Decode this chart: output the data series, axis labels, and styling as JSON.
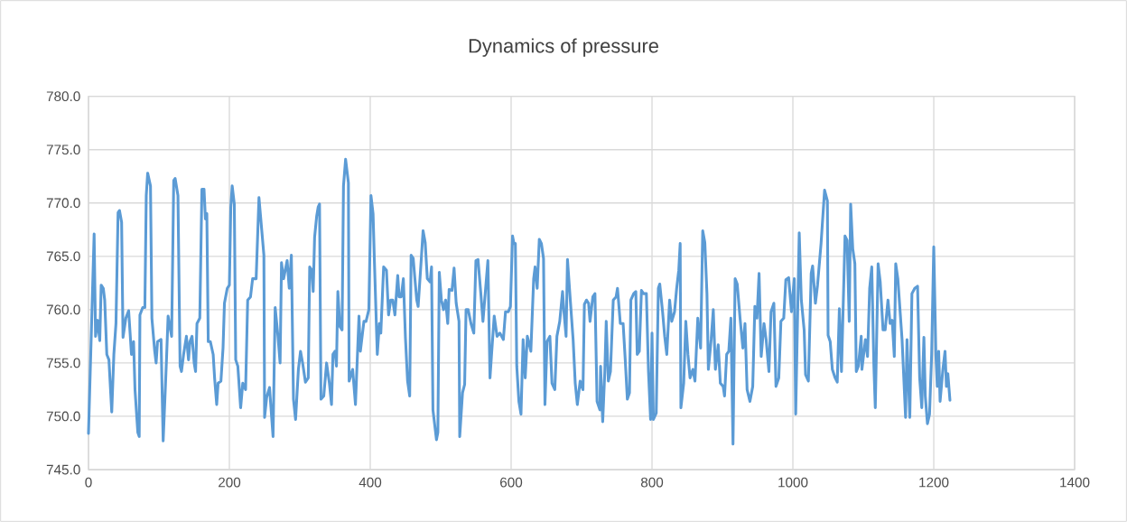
{
  "chart_data": {
    "type": "line",
    "title": "Dynamics of pressure",
    "xlim": [
      0,
      1400
    ],
    "xticks": [
      0,
      200,
      400,
      600,
      800,
      1000,
      1200,
      1400
    ],
    "ylim": [
      745,
      780
    ],
    "yticks": [
      {
        "value": 745,
        "label": "745.0"
      },
      {
        "value": 750,
        "label": "750.0"
      },
      {
        "value": 755,
        "label": "755.0"
      },
      {
        "value": 760,
        "label": "760.0"
      },
      {
        "value": 765,
        "label": "765.0"
      },
      {
        "value": 770,
        "label": "770.0"
      },
      {
        "value": 775,
        "label": "775.0"
      },
      {
        "value": 780,
        "label": "780.0"
      }
    ],
    "grid": true,
    "marker": "none",
    "line_style": "solid",
    "series": [
      {
        "color": "#5b9bd5",
        "x": [
          0,
          8,
          10,
          13,
          16,
          18,
          21,
          23,
          26,
          29,
          33,
          36,
          39,
          42,
          44,
          47,
          49,
          53,
          57,
          61,
          64,
          66,
          70,
          72,
          73,
          77,
          80,
          82,
          84,
          88,
          90,
          94,
          96,
          98,
          103,
          106,
          109,
          111,
          113,
          118,
          121,
          123,
          127,
          130,
          132,
          135,
          139,
          142,
          144,
          147,
          150,
          152,
          154,
          158,
          161,
          164,
          166,
          168,
          170,
          173,
          177,
          179,
          182,
          184,
          188,
          191,
          193,
          197,
          200,
          202,
          204,
          207,
          209,
          212,
          216,
          219,
          223,
          226,
          230,
          233,
          238,
          242,
          249,
          250,
          253,
          257,
          262,
          265,
          269,
          272,
          274,
          277,
          282,
          285,
          288,
          291,
          294,
          298,
          301,
          304,
          308,
          312,
          314,
          317,
          319,
          321,
          324,
          326,
          328,
          330,
          334,
          338,
          342,
          345,
          347,
          350,
          352,
          354,
          357,
          360,
          362,
          365,
          369,
          370,
          375,
          379,
          384,
          386,
          391,
          394,
          398,
          401,
          404,
          406,
          410,
          413,
          415,
          419,
          423,
          426,
          429,
          432,
          435,
          439,
          441,
          444,
          447,
          450,
          453,
          456,
          458,
          461,
          463,
          466,
          468,
          472,
          475,
          478,
          481,
          485,
          487,
          489,
          494,
          496,
          498,
          501,
          504,
          507,
          510,
          512,
          516,
          519,
          522,
          526,
          527,
          531,
          534,
          536,
          539,
          543,
          547,
          550,
          553,
          557,
          560,
          567,
          570,
          572,
          576,
          580,
          584,
          589,
          592,
          596,
          599,
          602,
          604,
          606,
          608,
          611,
          614,
          617,
          620,
          623,
          628,
          632,
          634,
          637,
          640,
          643,
          646,
          648,
          651,
          655,
          658,
          662,
          665,
          669,
          673,
          675,
          678,
          680,
          684,
          688,
          691,
          694,
          698,
          702,
          704,
          707,
          710,
          712,
          716,
          719,
          722,
          726,
          727,
          730,
          733,
          735,
          738,
          741,
          745,
          749,
          751,
          755,
          759,
          762,
          765,
          768,
          770,
          774,
          777,
          779,
          782,
          785,
          788,
          792,
          795,
          798,
          800,
          802,
          806,
          809,
          811,
          815,
          818,
          821,
          825,
          828,
          832,
          835,
          838,
          840,
          841,
          845,
          848,
          851,
          854,
          858,
          861,
          865,
          869,
          872,
          875,
          878,
          880,
          884,
          887,
          890,
          894,
          897,
          901,
          903,
          906,
          909,
          912,
          915,
          918,
          921,
          925,
          929,
          932,
          935,
          939,
          943,
          946,
          949,
          952,
          955,
          959,
          962,
          966,
          969,
          973,
          976,
          980,
          983,
          987,
          990,
          994,
          998,
          1002,
          1004,
          1009,
          1012,
          1016,
          1018,
          1022,
          1026,
          1028,
          1032,
          1035,
          1040,
          1045,
          1049,
          1050,
          1053,
          1056,
          1060,
          1063,
          1066,
          1069,
          1074,
          1077,
          1080,
          1082,
          1085,
          1088,
          1090,
          1093,
          1097,
          1098,
          1103,
          1106,
          1109,
          1112,
          1115,
          1117,
          1121,
          1124,
          1128,
          1131,
          1135,
          1138,
          1141,
          1144,
          1146,
          1149,
          1155,
          1160,
          1162,
          1166,
          1169,
          1173,
          1177,
          1180,
          1183,
          1186,
          1188,
          1191,
          1194,
          1197,
          1200,
          1203,
          1205,
          1207,
          1209,
          1213,
          1216,
          1218,
          1220,
          1223
        ],
        "values": [
          748.4,
          767.1,
          757.5,
          759,
          757.1,
          762.3,
          762,
          760.9,
          755.8,
          755.3,
          750.4,
          755.8,
          758.7,
          769.1,
          769.3,
          768.2,
          757.4,
          759.2,
          759.9,
          755.8,
          757,
          752.5,
          748.5,
          748.1,
          759.5,
          760.2,
          760.2,
          770.7,
          772.8,
          771.6,
          759.2,
          756.1,
          755,
          757,
          757.2,
          747.7,
          752.5,
          755.8,
          759.4,
          757.5,
          772.1,
          772.3,
          770.7,
          754.7,
          754.2,
          755.8,
          757.5,
          755.3,
          757,
          757.5,
          755,
          754.2,
          758.7,
          759.2,
          771.3,
          771.3,
          768.5,
          769,
          757,
          757,
          755.8,
          753.6,
          751.1,
          753.1,
          753.3,
          756.4,
          760.6,
          762,
          762.3,
          769.6,
          771.6,
          769.9,
          755.3,
          754.7,
          750.8,
          753.1,
          752.5,
          760.9,
          761.2,
          762.9,
          762.9,
          770.5,
          765.1,
          749.9,
          751.8,
          752.7,
          748.1,
          760.2,
          757.5,
          755,
          764.4,
          762.9,
          764.6,
          762,
          765.1,
          751.6,
          749.7,
          754.4,
          756.1,
          755,
          753.2,
          753.6,
          764,
          763.7,
          761.7,
          766.8,
          768.8,
          769.6,
          769.9,
          751.6,
          751.9,
          755,
          753.1,
          751.1,
          755.8,
          756.1,
          754.7,
          761.7,
          758.4,
          758.1,
          771.6,
          774.1,
          771.9,
          753.3,
          754.4,
          751.1,
          759.4,
          756.1,
          758.9,
          758.9,
          760,
          770.7,
          769,
          764.3,
          755.8,
          758.7,
          757.8,
          764,
          763.7,
          759.5,
          760.9,
          760.9,
          759.5,
          763.2,
          761.2,
          761.2,
          762.9,
          757.3,
          753.3,
          751.9,
          765.1,
          764.8,
          763.2,
          760.9,
          760.3,
          764.3,
          767.4,
          766.3,
          762.9,
          762.6,
          764,
          750.6,
          747.8,
          748.5,
          763.5,
          760.9,
          760,
          760.9,
          758.7,
          761.9,
          761.8,
          763.9,
          760.6,
          758.9,
          748.1,
          752.2,
          753,
          760,
          760,
          758.7,
          757.8,
          764.6,
          764.7,
          761.5,
          758.9,
          764.6,
          753.6,
          755.6,
          759.4,
          757.5,
          757.8,
          757.2,
          759.8,
          759.8,
          760.3,
          766.9,
          766.2,
          766.2,
          754.7,
          751.4,
          750.2,
          757.2,
          753.6,
          757.5,
          756.1,
          762.9,
          764,
          762,
          766.6,
          766.2,
          764.8,
          751.1,
          757,
          757.5,
          753.1,
          752.5,
          757.5,
          758.9,
          761.7,
          759.8,
          757.5,
          764.7,
          760.9,
          757.2,
          753.1,
          751.1,
          753.3,
          752.5,
          760.5,
          760.9,
          760.6,
          758.9,
          761.2,
          761.5,
          751.4,
          750.6,
          754.7,
          749.5,
          754.2,
          758.9,
          753.3,
          754.2,
          760.9,
          761.2,
          762,
          758.7,
          758.7,
          755.3,
          751.6,
          752.2,
          760.9,
          761.5,
          761.7,
          755.8,
          756.1,
          761.8,
          761.5,
          761.5,
          754.2,
          749.7,
          757.8,
          749.7,
          750.3,
          762,
          762.4,
          759.8,
          757.5,
          755.8,
          760.9,
          758.9,
          759.8,
          762,
          763.7,
          766.2,
          750.8,
          753.1,
          758.9,
          755.8,
          753.6,
          754.4,
          753.3,
          759.2,
          756.4,
          767.4,
          766.3,
          761.5,
          754.4,
          757.2,
          760,
          754.4,
          756.7,
          753.1,
          752.8,
          751.9,
          755.8,
          756.1,
          759.2,
          747.4,
          762.9,
          762.4,
          759.2,
          756.4,
          758.7,
          752.5,
          751.4,
          752.8,
          760.3,
          759.2,
          763.4,
          755.6,
          758.7,
          757.2,
          754.2,
          759.8,
          760.6,
          752.8,
          753.6,
          758.9,
          759.2,
          762.8,
          763,
          759.8,
          762.9,
          750.2,
          767.2,
          760.9,
          758.1,
          753.9,
          753.3,
          763.4,
          764.1,
          760.6,
          762.3,
          766.2,
          771.2,
          770.2,
          757.6,
          757,
          754.4,
          753.6,
          753.2,
          760.1,
          754.2,
          766.9,
          766.5,
          758.9,
          769.9,
          765.7,
          764.3,
          754.2,
          754.7,
          757.5,
          754.4,
          757.2,
          755.6,
          762,
          764,
          754.7,
          750.8,
          764.3,
          762.6,
          758.1,
          758.1,
          760.9,
          758.7,
          759,
          755.6,
          764.3,
          762.9,
          757.2,
          749.9,
          757.2,
          749.9,
          761.5,
          762,
          762.2,
          753.6,
          750.8,
          757.4,
          751.9,
          749.3,
          750.2,
          755.8,
          765.9,
          755.8,
          752.8,
          756.1,
          751.4,
          754.4,
          756.1,
          752.8,
          754,
          751.5
        ]
      }
    ]
  }
}
